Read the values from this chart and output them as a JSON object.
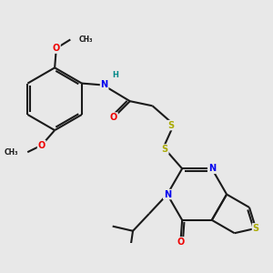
{
  "bg_color": "#e8e8e8",
  "bond_color": "#1a1a1a",
  "bond_width": 1.5,
  "atom_colors": {
    "N": "#0000ee",
    "O": "#ee0000",
    "S": "#aaaa00",
    "H": "#008888",
    "C": "#1a1a1a"
  },
  "font_size": 7.0,
  "figsize": [
    3.0,
    3.0
  ],
  "dpi": 100
}
